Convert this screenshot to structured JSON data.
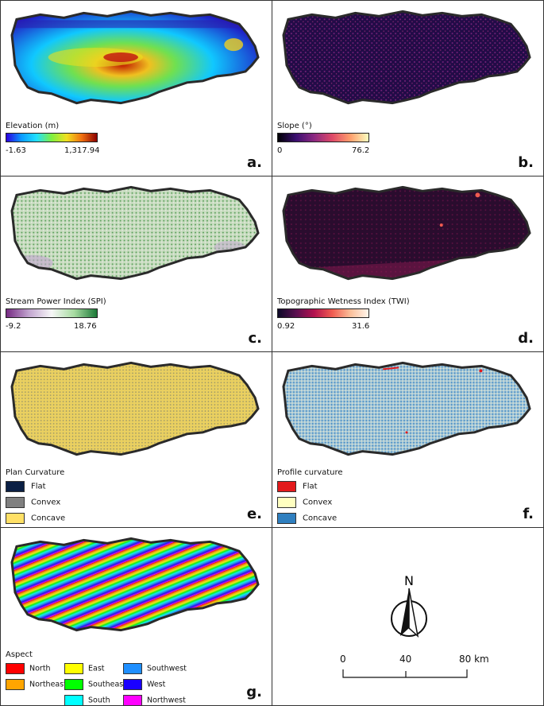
{
  "panels": {
    "a": {
      "letter": "a.",
      "legend_title": "Elevation (m)",
      "min_label": "-1.63",
      "max_label": "1,317.94",
      "gradient": [
        "#2b00e0",
        "#0a9bff",
        "#22e0ff",
        "#7ff040",
        "#f0e020",
        "#f07010",
        "#8b0000"
      ]
    },
    "b": {
      "letter": "b.",
      "legend_title": "Slope (°)",
      "min_label": "0",
      "max_label": "76.2",
      "gradient": [
        "#000004",
        "#3b0f70",
        "#8c2981",
        "#de4968",
        "#fe9f6d",
        "#fcfdbf"
      ]
    },
    "c": {
      "letter": "c.",
      "legend_title": "Stream Power Index (SPI)",
      "min_label": "-9.2",
      "max_label": "18.76",
      "gradient": [
        "#762a83",
        "#c2a5cf",
        "#f7f7f7",
        "#a6dba0",
        "#1b7837"
      ]
    },
    "d": {
      "letter": "d.",
      "legend_title": "Topographic Wetness Index (TWI)",
      "min_label": "0.92",
      "max_label": "31.6",
      "gradient": [
        "#0d0a29",
        "#5a1050",
        "#b3124f",
        "#f05c50",
        "#fbbf9a",
        "#fff5eb"
      ]
    },
    "e": {
      "letter": "e.",
      "legend_title": "Plan Curvature",
      "classes": [
        {
          "label": "Flat",
          "color": "#0a1f44"
        },
        {
          "label": "Convex",
          "color": "#808080"
        },
        {
          "label": "Concave",
          "color": "#ffe066"
        }
      ]
    },
    "f": {
      "letter": "f.",
      "legend_title": "Profile curvature",
      "classes": [
        {
          "label": "Flat",
          "color": "#e31a1c"
        },
        {
          "label": "Convex",
          "color": "#ffffc0"
        },
        {
          "label": "Concave",
          "color": "#2f7fbf"
        }
      ]
    },
    "g": {
      "letter": "g.",
      "legend_title": "Aspect",
      "classes": [
        {
          "label": "North",
          "color": "#ff0000"
        },
        {
          "label": "Northeast",
          "color": "#ffa500"
        },
        {
          "label": "East",
          "color": "#ffff00"
        },
        {
          "label": "Southeast",
          "color": "#00ff00"
        },
        {
          "label": "South",
          "color": "#00ffff"
        },
        {
          "label": "Southwest",
          "color": "#1f8fff"
        },
        {
          "label": "West",
          "color": "#1a00ff"
        },
        {
          "label": "Northwest",
          "color": "#ff00ff"
        }
      ]
    }
  },
  "north_arrow": {
    "label": "N"
  },
  "scale_bar": {
    "labels": [
      "0",
      "40",
      "80 km"
    ]
  }
}
